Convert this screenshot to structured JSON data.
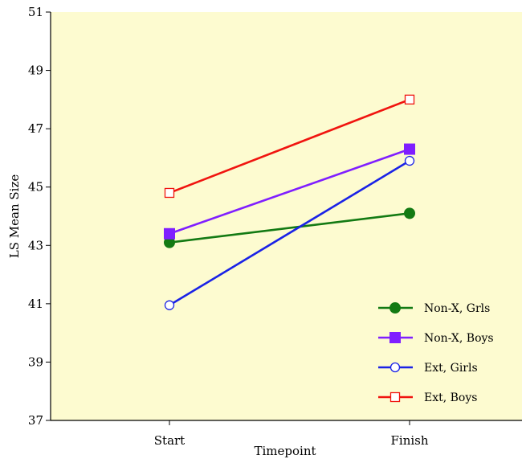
{
  "chart_data": {
    "type": "line",
    "title": "",
    "xlabel": "Timepoint",
    "ylabel": "LS Mean Size",
    "categories": [
      "Start",
      "Finish"
    ],
    "ylim": [
      37,
      51
    ],
    "yticks": [
      "37",
      "39",
      "41",
      "43",
      "45",
      "47",
      "49",
      "51"
    ],
    "grid": false,
    "plot_background": "#fdfbd0",
    "legend_position": "bottom-right",
    "series": [
      {
        "name": "Non-X, Grls",
        "values": [
          43.1,
          44.1
        ],
        "color": "#137a13",
        "marker": "filled-circle"
      },
      {
        "name": "Non-X, Boys",
        "values": [
          43.4,
          46.3
        ],
        "color": "#7f1eff",
        "marker": "filled-square"
      },
      {
        "name": "Ext, Girls",
        "values": [
          40.95,
          45.9
        ],
        "color": "#1a22e6",
        "marker": "open-circle"
      },
      {
        "name": "Ext, Boys",
        "values": [
          44.8,
          48.0
        ],
        "color": "#f0140f",
        "marker": "open-square"
      }
    ]
  }
}
